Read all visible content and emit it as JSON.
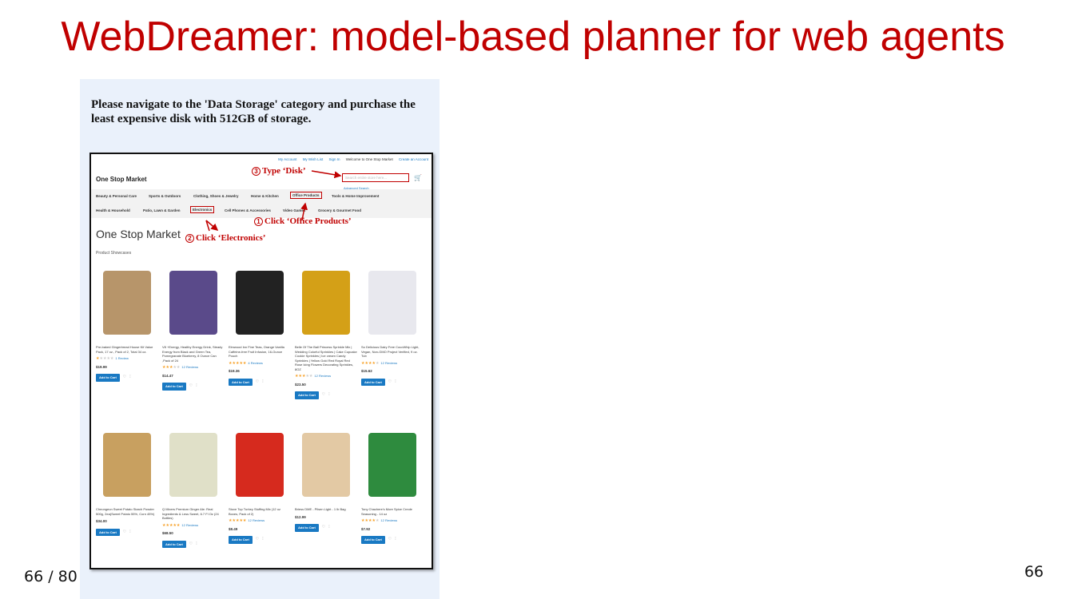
{
  "slide": {
    "title": "WebDreamer: model-based planner for web agents",
    "page_left": "66 / 80",
    "page_right": "66"
  },
  "task": "Please navigate to the 'Data Storage' category and purchase the least expensive disk with 512GB of storage.",
  "site": {
    "top_links": [
      "My Account",
      "My Wish List",
      "Sign In",
      "Welcome to One Stop Market",
      "Create an Account"
    ],
    "logo": "One Stop Market",
    "search_placeholder": "Search entire store here...",
    "advanced_search": "Advanced Search",
    "nav_row1": [
      "Beauty & Personal Care",
      "Sports & Outdoors",
      "Clothing, Shoes & Jewelry",
      "Home & Kitchen",
      "Office Products",
      "Tools & Home Improvement"
    ],
    "nav_row2": [
      "Health & Household",
      "Patio, Lawn & Garden",
      "Electronics",
      "Cell Phones & Accessories",
      "Video Games",
      "Grocery & Gourmet Food"
    ],
    "heading": "One Stop Market",
    "subheading": "Product Showcases",
    "add_to_cart": "Add to Cart"
  },
  "products": [
    {
      "name": "Pre-baked Gingerbread House Kit Value Pack, 17 oz., Pack of 2, Total 34 oz.",
      "rating": 1,
      "reviews": "1 Review",
      "price": "$19.99",
      "color": "#b7956a"
    },
    {
      "name": "V8 +Energy, Healthy Energy Drink, Steady Energy from Black and Green Tea, Pomegranate Blueberry, 8 Ounce Can ,Pack of 24",
      "rating": 3,
      "reviews": "12 Reviews",
      "price": "$14.47",
      "color": "#5a4a8a"
    },
    {
      "name": "Elmwood Inn Fine Teas, Orange Vanilla Caffeine-free Fruit Infusion, 16-Ounce Pouch",
      "rating": 5,
      "reviews": "4 Reviews",
      "price": "$19.36",
      "color": "#222222"
    },
    {
      "name": "Belle Of The Ball Princess Sprinkle Mix | Wedding Colorful Sprinkles | Cake Cupcake Cookie Sprinkles | Ice cream Candy Sprinkles | Yellow Gold Red Royal Red Rose Icing Flowers Decorating Sprinkles, 8OZ",
      "rating": 3,
      "reviews": "12 Reviews",
      "price": "$23.50",
      "color": "#d4a017"
    },
    {
      "name": "So Delicious Dairy Free CocoWhip Light, Vegan, Non-GMO Project Verified, 9 oz. Tub",
      "rating": 4,
      "reviews": "12 Reviews",
      "price": "$15.62",
      "color": "#e8e8ee"
    },
    {
      "name": "Cheongeun Sweet Potato Starch Powder 500g, 2ea(Sweet Potato 55%, Corn 45%)",
      "rating": 0,
      "reviews": "",
      "price": "$34.00",
      "color": "#c8a060"
    },
    {
      "name": "Q Mixers Premium Ginger Ale: Real Ingredients & Less Sweet, 6.7 Fl Oz (24 Bottles)",
      "rating": 5,
      "reviews": "12 Reviews",
      "price": "$68.50",
      "color": "#e0e0c8"
    },
    {
      "name": "Stove Top Turkey Stuffing Mix (12 oz Boxes, Pack of 2)",
      "rating": 5,
      "reviews": "12 Reviews",
      "price": "$8.49",
      "color": "#d62a1e"
    },
    {
      "name": "Briess DME - Pilsen Light - 1 lb Bag",
      "rating": 0,
      "reviews": "",
      "price": "$12.99",
      "color": "#e3c9a4"
    },
    {
      "name": "Tony Chachere's More Spice Creole Seasoning - 14 oz",
      "rating": 4,
      "reviews": "12 Reviews",
      "price": "$7.92",
      "color": "#2e8b3e"
    }
  ],
  "annotations": {
    "a1_num": "1",
    "a1_text": "Click ‘Office Products’",
    "a2_num": "2",
    "a2_text": "Click ‘Electronics’",
    "a3_num": "3",
    "a3_text": "Type ‘Disk’"
  },
  "colors": {
    "title_red": "#c00000",
    "accent_blue": "#1979c3",
    "panel_bg": "#eaf1fb"
  }
}
